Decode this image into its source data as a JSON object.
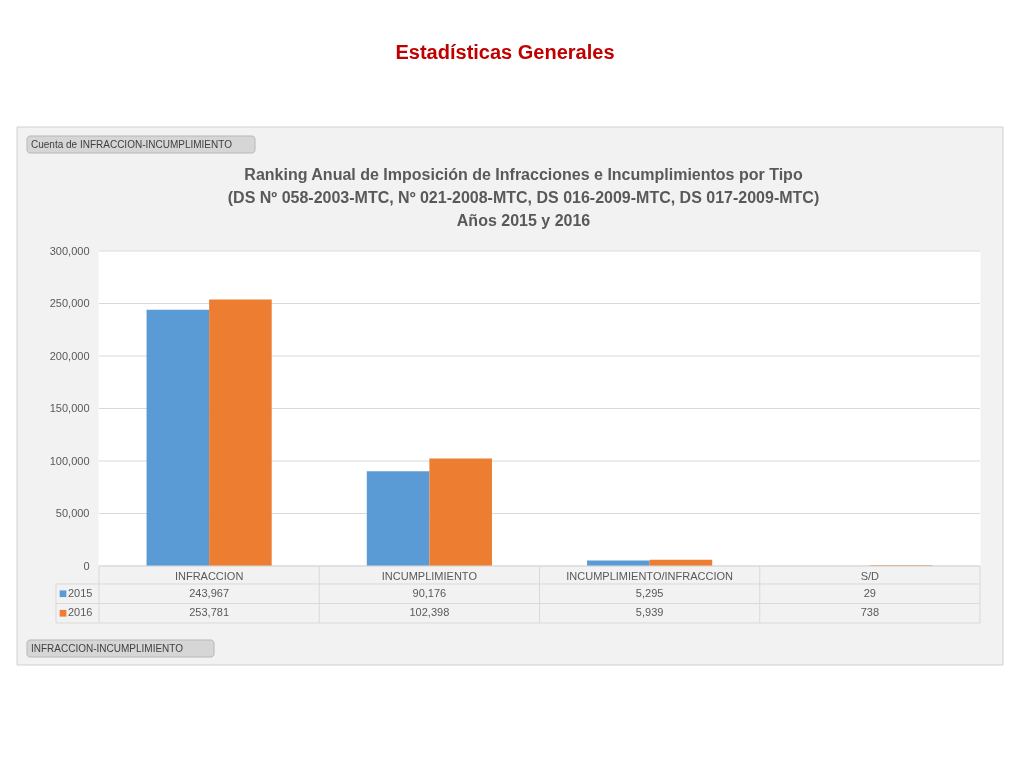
{
  "chart_data": {
    "type": "bar",
    "title": "Ranking Anual de Imposición de Infracciones e Incumplimientos por Tipo\n(DS Nº 058-2003-MTC, Nº 021-2008-MTC, DS 016-2009-MTC, DS 017-2009-MTC)\nAños 2015 y 2016",
    "annotations": [
      "Estadísticas Generales",
      "Cuenta de INFRACCION-INCUMPLIMIENTO",
      "INFRACCION-INCUMPLIMIENTO"
    ],
    "categories": [
      "INFRACCION",
      "INCUMPLIMIENTO",
      "INCUMPLIMIENTO/INFRACCION",
      "S/D"
    ],
    "series": [
      {
        "name": "2015",
        "color": "#5b9bd5",
        "values": [
          243967,
          90176,
          5295,
          29
        ],
        "value_labels": [
          "243,967",
          "90,176",
          "5,295",
          "29"
        ]
      },
      {
        "name": "2016",
        "color": "#ed7d31",
        "values": [
          253781,
          102398,
          5939,
          738
        ],
        "value_labels": [
          "253,781",
          "102,398",
          "5,939",
          "738"
        ]
      }
    ],
    "ylim": [
      0,
      300000
    ],
    "yticks": [
      0,
      {
        "value": 50000,
        "label": "50,000"
      },
      {
        "value": 100000,
        "label": "100,000"
      },
      {
        "value": 150000,
        "label": "150,000"
      },
      {
        "value": 200000,
        "label": "200,000"
      },
      {
        "value": 250000,
        "label": "250,000"
      },
      {
        "value": 300000,
        "label": "300,000"
      }
    ],
    "grid": "y",
    "legend": "bottom"
  }
}
